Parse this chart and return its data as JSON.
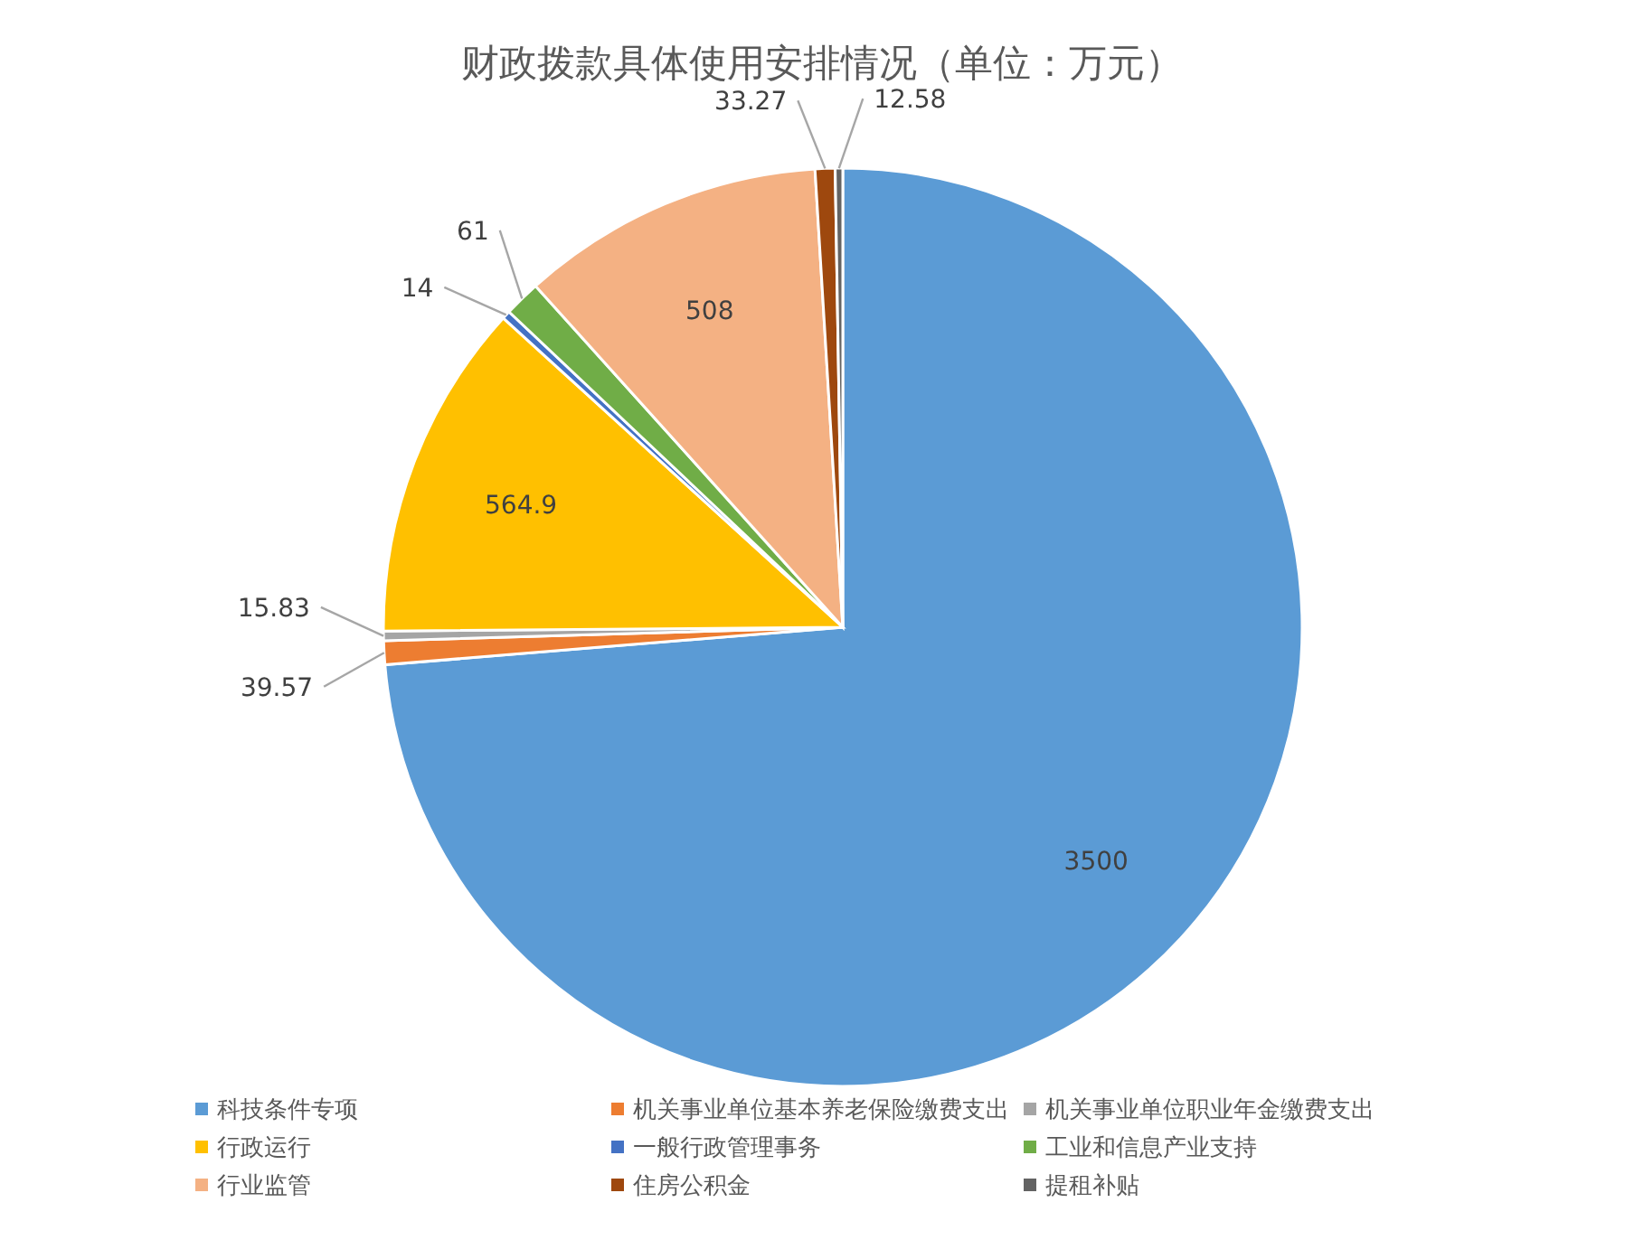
{
  "chart_data": {
    "type": "pie",
    "title": "财政拨款具体使用安排情况（单位：万元）",
    "categories": [
      "科技条件专项",
      "机关事业单位基本养老保险缴费支出",
      "机关事业单位职业年金缴费支出",
      "行政运行",
      "一般行政管理事务",
      "工业和信息产业支持",
      "行业监管",
      "住房公积金",
      "提租补贴"
    ],
    "values": [
      3500,
      39.57,
      15.83,
      564.9,
      14,
      61,
      508,
      33.27,
      12.58
    ],
    "colors": [
      "#5b9bd5",
      "#ed7d31",
      "#a5a5a5",
      "#ffc000",
      "#4472c4",
      "#70ad47",
      "#f4b183",
      "#9e480e",
      "#636363"
    ],
    "data_labels": true,
    "legend": "bottom"
  }
}
